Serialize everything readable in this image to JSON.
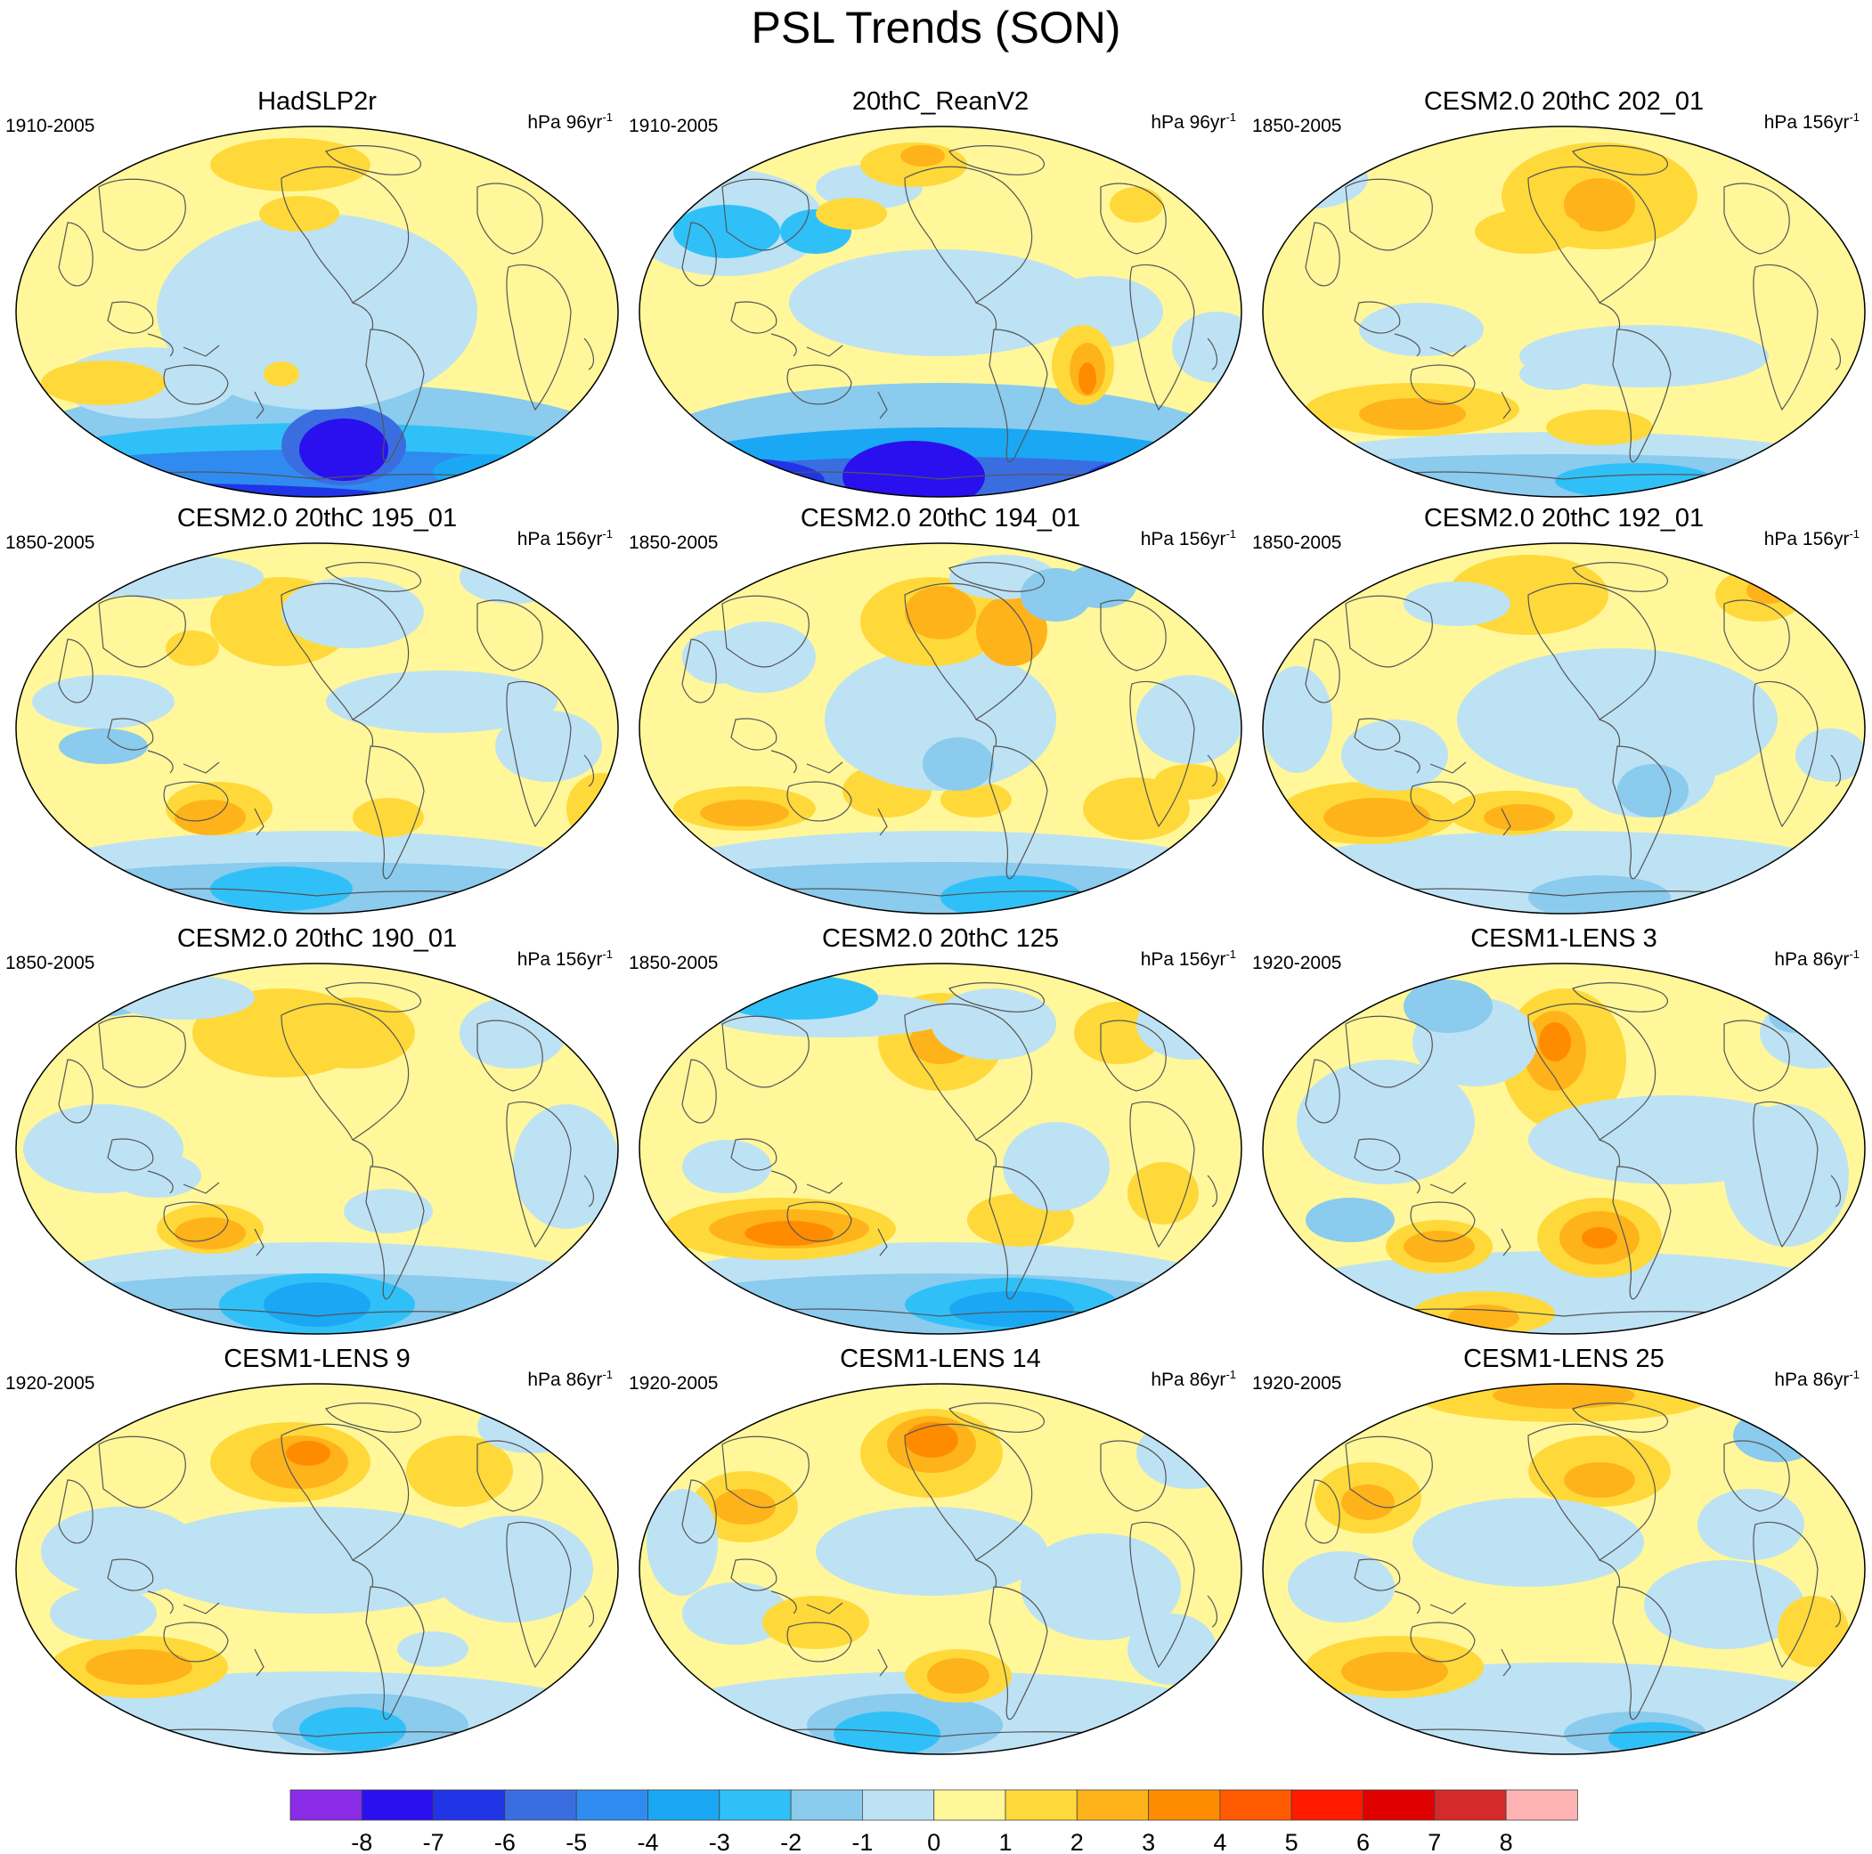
{
  "title": "PSL Trends (SON)",
  "panels": [
    {
      "title": "HadSLP2r",
      "period": "1910-2005",
      "units": "hPa 96yr",
      "exp": "-1",
      "pattern": "had"
    },
    {
      "title": "20thC_ReanV2",
      "period": "1910-2005",
      "units": "hPa 96yr",
      "exp": "-1",
      "pattern": "rean"
    },
    {
      "title": "CESM2.0 20thC 202_01",
      "period": "1850-2005",
      "units": "hPa 156yr",
      "exp": "-1",
      "pattern": "m1"
    },
    {
      "title": "CESM2.0 20thC 195_01",
      "period": "1850-2005",
      "units": "hPa 156yr",
      "exp": "-1",
      "pattern": "m2"
    },
    {
      "title": "CESM2.0 20thC 194_01",
      "period": "1850-2005",
      "units": "hPa 156yr",
      "exp": "-1",
      "pattern": "m3"
    },
    {
      "title": "CESM2.0 20thC 192_01",
      "period": "1850-2005",
      "units": "hPa 156yr",
      "exp": "-1",
      "pattern": "m4"
    },
    {
      "title": "CESM2.0 20thC 190_01",
      "period": "1850-2005",
      "units": "hPa 156yr",
      "exp": "-1",
      "pattern": "m5"
    },
    {
      "title": "CESM2.0 20thC 125",
      "period": "1850-2005",
      "units": "hPa 156yr",
      "exp": "-1",
      "pattern": "m6"
    },
    {
      "title": "CESM1-LENS 3",
      "period": "1920-2005",
      "units": "hPa 86yr",
      "exp": "-1",
      "pattern": "l1"
    },
    {
      "title": "CESM1-LENS 9",
      "period": "1920-2005",
      "units": "hPa 86yr",
      "exp": "-1",
      "pattern": "l2"
    },
    {
      "title": "CESM1-LENS 14",
      "period": "1920-2005",
      "units": "hPa 86yr",
      "exp": "-1",
      "pattern": "l3"
    },
    {
      "title": "CESM1-LENS 25",
      "period": "1920-2005",
      "units": "hPa 86yr",
      "exp": "-1",
      "pattern": "l4"
    }
  ],
  "colorbar": {
    "colors": [
      "#8a2be8",
      "#2a10ee",
      "#2035e6",
      "#3a6ee0",
      "#2f8bf0",
      "#1aa8f4",
      "#30c0f8",
      "#8acbee",
      "#bde2f4",
      "#fff79a",
      "#ffd93a",
      "#ffb31a",
      "#ff8c00",
      "#ff5a00",
      "#ff1a00",
      "#e00000",
      "#d42a2a",
      "#ffb3b3"
    ],
    "labels": [
      "-8",
      "-7",
      "-6",
      "-5",
      "-4",
      "-3",
      "-2",
      "-1",
      "0",
      "1",
      "2",
      "3",
      "4",
      "5",
      "6",
      "7",
      "8"
    ]
  }
}
